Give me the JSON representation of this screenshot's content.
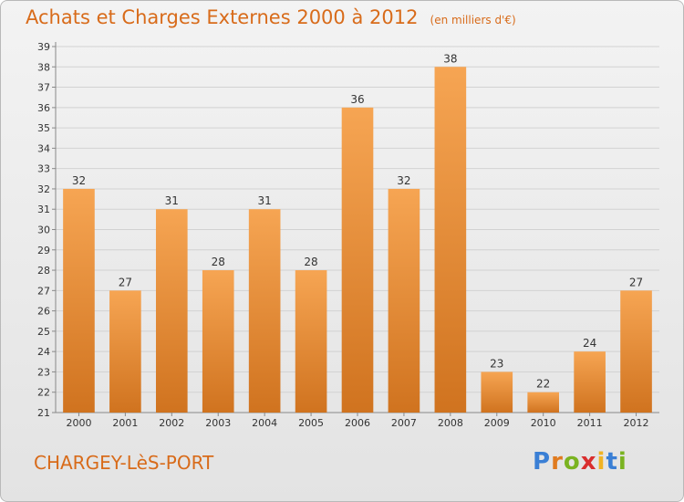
{
  "title": "Achats et Charges Externes 2000 à 2012",
  "subtitle": "(en milliers d'€)",
  "commune": "CHARGEY-LèS-PORT",
  "logo": {
    "letters": [
      "P",
      "r",
      "o",
      "x",
      "i",
      "t",
      "i"
    ],
    "colors": [
      "#3a7fd5",
      "#e07b1f",
      "#7ab321",
      "#d92e2e",
      "#f0b323",
      "#3a7fd5",
      "#7ab321"
    ]
  },
  "colors": {
    "bar_top": "#f6a553",
    "bar_bottom": "#d0731f",
    "title": "#d86b1a"
  },
  "chart_data": {
    "type": "bar",
    "categories": [
      "2000",
      "2001",
      "2002",
      "2003",
      "2004",
      "2005",
      "2006",
      "2007",
      "2008",
      "2009",
      "2010",
      "2011",
      "2012"
    ],
    "values": [
      32,
      27,
      31,
      28,
      31,
      28,
      36,
      32,
      38,
      23,
      22,
      24,
      27
    ],
    "ylim": [
      21,
      39
    ],
    "yticks": [
      21,
      22,
      23,
      24,
      25,
      26,
      27,
      28,
      29,
      30,
      31,
      32,
      33,
      34,
      35,
      36,
      37,
      38,
      39
    ],
    "grid": true
  }
}
